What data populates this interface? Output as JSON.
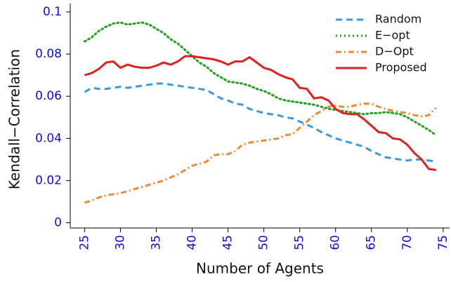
{
  "chart_data": {
    "type": "line",
    "xlabel": "Number of Agents",
    "ylabel": "Kendall−Correlation",
    "x": [
      25,
      26,
      27,
      28,
      29,
      30,
      31,
      32,
      33,
      34,
      35,
      36,
      37,
      38,
      39,
      40,
      41,
      42,
      43,
      44,
      45,
      46,
      47,
      48,
      49,
      50,
      51,
      52,
      53,
      54,
      55,
      56,
      57,
      58,
      59,
      60,
      61,
      62,
      63,
      64,
      65,
      66,
      67,
      68,
      69,
      70,
      71,
      72,
      73,
      74
    ],
    "series": [
      {
        "name": "Random",
        "color": "#3a9ae0",
        "dash": "9,6",
        "values": [
          0.062,
          0.064,
          0.0635,
          0.0635,
          0.064,
          0.0645,
          0.064,
          0.0645,
          0.065,
          0.0655,
          0.066,
          0.066,
          0.0655,
          0.065,
          0.0645,
          0.064,
          0.0635,
          0.063,
          0.061,
          0.059,
          0.058,
          0.0565,
          0.056,
          0.054,
          0.053,
          0.052,
          0.0515,
          0.051,
          0.05,
          0.0495,
          0.048,
          0.0465,
          0.045,
          0.043,
          0.0415,
          0.04,
          0.039,
          0.038,
          0.037,
          0.036,
          0.034,
          0.0325,
          0.031,
          0.0305,
          0.03,
          0.0295,
          0.03,
          0.03,
          0.0295,
          0.029
        ]
      },
      {
        "name": "E−opt",
        "color": "#22a022",
        "dash": "2,4",
        "values": [
          0.086,
          0.088,
          0.091,
          0.093,
          0.0945,
          0.095,
          0.094,
          0.0945,
          0.095,
          0.094,
          0.092,
          0.09,
          0.087,
          0.085,
          0.082,
          0.079,
          0.076,
          0.074,
          0.071,
          0.069,
          0.067,
          0.0665,
          0.066,
          0.065,
          0.0635,
          0.0625,
          0.061,
          0.059,
          0.058,
          0.0575,
          0.057,
          0.0565,
          0.056,
          0.055,
          0.054,
          0.0535,
          0.053,
          0.0525,
          0.052,
          0.0515,
          0.052,
          0.052,
          0.0525,
          0.052,
          0.0515,
          0.05,
          0.048,
          0.046,
          0.044,
          0.0415
        ]
      },
      {
        "name": "D−Opt",
        "color": "#f08a30",
        "dash": "8,4,2,4",
        "values": [
          0.0095,
          0.0105,
          0.012,
          0.013,
          0.0135,
          0.014,
          0.015,
          0.016,
          0.017,
          0.018,
          0.019,
          0.02,
          0.0215,
          0.023,
          0.025,
          0.027,
          0.028,
          0.029,
          0.032,
          0.0325,
          0.0325,
          0.034,
          0.037,
          0.038,
          0.0385,
          0.039,
          0.0395,
          0.04,
          0.0415,
          0.042,
          0.045,
          0.048,
          0.051,
          0.053,
          0.055,
          0.0555,
          0.055,
          0.055,
          0.056,
          0.0565,
          0.0565,
          0.055,
          0.054,
          0.053,
          0.0525,
          0.052,
          0.051,
          0.0505,
          0.051,
          0.0545
        ]
      },
      {
        "name": "Proposed",
        "color": "#e02020",
        "dash": "none",
        "values": [
          0.07,
          0.071,
          0.073,
          0.076,
          0.0765,
          0.0735,
          0.075,
          0.074,
          0.0735,
          0.0735,
          0.0745,
          0.076,
          0.075,
          0.0765,
          0.079,
          0.079,
          0.0785,
          0.078,
          0.0775,
          0.0765,
          0.075,
          0.0765,
          0.0765,
          0.0785,
          0.076,
          0.0735,
          0.0725,
          0.0705,
          0.069,
          0.068,
          0.064,
          0.0635,
          0.059,
          0.0595,
          0.058,
          0.054,
          0.052,
          0.0515,
          0.0515,
          0.049,
          0.046,
          0.043,
          0.0425,
          0.04,
          0.0395,
          0.037,
          0.033,
          0.03,
          0.0255,
          0.025
        ]
      }
    ],
    "xlim": [
      23,
      75.9
    ],
    "xticks": [
      25,
      30,
      35,
      40,
      45,
      50,
      55,
      60,
      65,
      70,
      75
    ],
    "ylim": [
      -0.0025,
      0.104
    ],
    "yticks": [
      0,
      0.02,
      0.04,
      0.06,
      0.08,
      0.1
    ],
    "legend": "upper-right"
  }
}
